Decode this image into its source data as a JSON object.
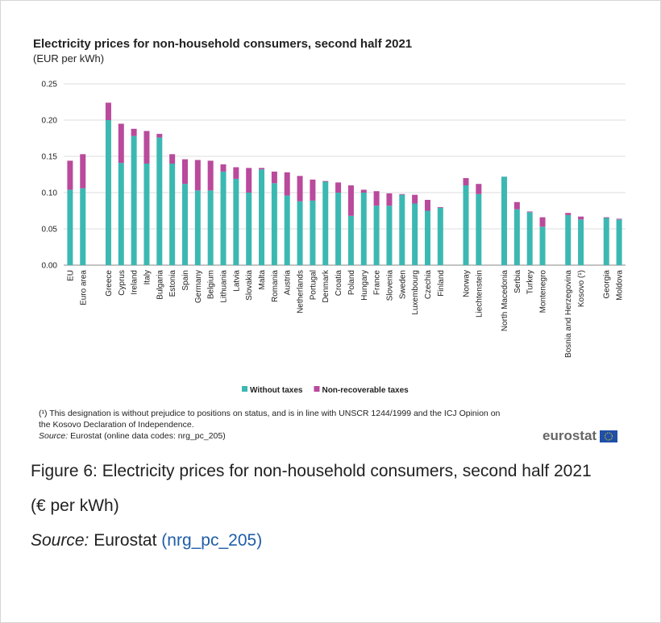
{
  "chart_data": {
    "type": "stacked-bar",
    "title": "Electricity prices for non-household consumers, second half 2021",
    "subtitle": "(EUR per kWh)",
    "categories": [
      "EU",
      "Euro area",
      null,
      "Greece",
      "Cyprus",
      "Ireland",
      "Italy",
      "Bulgaria",
      "Estonia",
      "Spain",
      "Germany",
      "Belgium",
      "Lithuania",
      "Latvia",
      "Slovakia",
      "Malta",
      "Romania",
      "Austria",
      "Netherlands",
      "Portugal",
      "Denmark",
      "Croatia",
      "Poland",
      "Hungary",
      "France",
      "Slovenia",
      "Sweden",
      "Luxembourg",
      "Czechia",
      "Finland",
      null,
      "Norway",
      "Liechtenstein",
      null,
      "North Macedonia",
      "Serbia",
      "Turkey",
      "Montenegro",
      null,
      "Bosnia and Herzegovina",
      "Kosovo (¹)",
      null,
      "Georgia",
      "Moldova"
    ],
    "series": [
      {
        "name": "Without taxes",
        "color": "#3cb8b2",
        "values": [
          0.104,
          0.106,
          null,
          0.2,
          0.141,
          0.178,
          0.14,
          0.176,
          0.14,
          0.112,
          0.103,
          0.103,
          0.129,
          0.119,
          0.1,
          0.132,
          0.113,
          0.096,
          0.088,
          0.089,
          0.115,
          0.1,
          0.068,
          0.1,
          0.082,
          0.082,
          0.097,
          0.085,
          0.075,
          0.079,
          null,
          0.11,
          0.098,
          null,
          0.122,
          0.077,
          0.073,
          0.053,
          null,
          0.069,
          0.063,
          null,
          0.065,
          0.063
        ]
      },
      {
        "name": "Non-recoverable taxes",
        "color": "#b94a9c",
        "values": [
          0.04,
          0.047,
          null,
          0.024,
          0.054,
          0.01,
          0.045,
          0.005,
          0.013,
          0.034,
          0.042,
          0.041,
          0.01,
          0.016,
          0.034,
          0.002,
          0.016,
          0.032,
          0.035,
          0.029,
          0.001,
          0.014,
          0.042,
          0.004,
          0.02,
          0.017,
          0.001,
          0.012,
          0.015,
          0.001,
          null,
          0.01,
          0.014,
          null,
          0,
          0.01,
          0.001,
          0.013,
          null,
          0.003,
          0.004,
          null,
          0.001,
          0.001
        ]
      }
    ],
    "ylim": [
      0,
      0.25
    ],
    "yticks": [
      {
        "value": 0,
        "label": "0.00"
      },
      0.05,
      {
        "value": 0.1,
        "label": "0.10"
      },
      0.15,
      {
        "value": 0.2,
        "label": "0.20"
      },
      0.25
    ],
    "grid": true,
    "legend": "bottom"
  },
  "footnote": "(¹) This designation is without prejudice to positions on status, and is in line with UNSCR 1244/1999 and the ICJ Opinion on the Kosovo Declaration of Independence.",
  "source": {
    "label": "Source:",
    "text": "Eurostat (online data codes: nrg_pc_205)"
  },
  "logo": "eurostat",
  "caption": {
    "title": "Figure 6: Electricity prices for non-household consumers, second half 2021",
    "unit": "(€ per kWh)",
    "source_label": "Source:",
    "source_text": "Eurostat",
    "source_link": "(nrg_pc_205)"
  }
}
